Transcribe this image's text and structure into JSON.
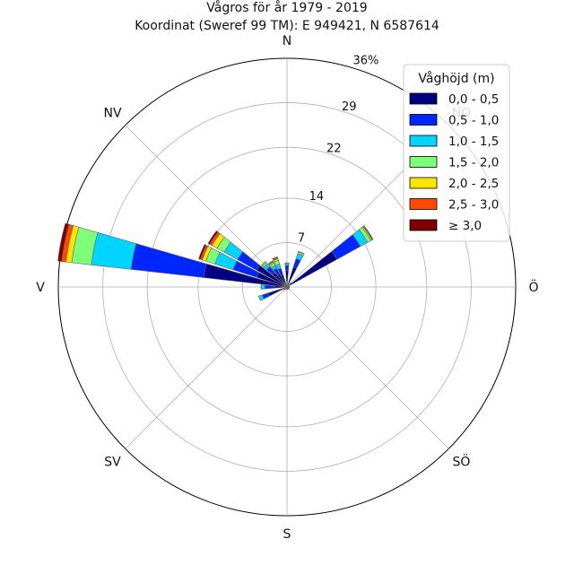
{
  "chart_data": {
    "type": "wind-rose",
    "title": "Vågros för år 1979 - 2019",
    "subtitle": "Koordinat (Sweref 99 TM): E 949421, N 6587614",
    "direction_labels": [
      "N",
      "NO",
      "Ö",
      "SÖ",
      "S",
      "SV",
      "V",
      "NV"
    ],
    "radial_ticks": [
      7,
      14,
      22,
      29,
      36
    ],
    "radial_unit": "%",
    "rmax": 36,
    "legend": {
      "title": "Våghöjd (m)",
      "position": "top-right",
      "entries": [
        {
          "label": "0,0 - 0,5",
          "color": "#000080"
        },
        {
          "label": "0,5 - 1,0",
          "color": "#0026ff"
        },
        {
          "label": "1,0 - 1,5",
          "color": "#00d4ff"
        },
        {
          "label": "1,5 - 2,0",
          "color": "#7dff7a"
        },
        {
          "label": "2,0 - 2,5",
          "color": "#ffe600"
        },
        {
          "label": "2,5 - 3,0",
          "color": "#ff4a00"
        },
        {
          "label": "≥ 3,0",
          "color": "#800000"
        }
      ]
    },
    "sectors": [
      {
        "direction": 0.0,
        "values": [
          2.6,
          0.8,
          0.3,
          0.1,
          0,
          0,
          0
        ]
      },
      {
        "direction": 22.5,
        "values": [
          3.3,
          1.4,
          0.8,
          0.3,
          0.1,
          0,
          0
        ]
      },
      {
        "direction": 45.0,
        "values": [
          0.5,
          0.2,
          0.1,
          0.1,
          0,
          0,
          0
        ]
      },
      {
        "direction": 56.25,
        "values": [
          9.0,
          4.2,
          1.3,
          0.6,
          0.2,
          0.1,
          0.1
        ]
      },
      {
        "direction": 67.5,
        "values": [
          0.3,
          0.1,
          0,
          0,
          0,
          0,
          0
        ]
      },
      {
        "direction": 90.0,
        "values": [
          0.3,
          0.1,
          0,
          0,
          0,
          0,
          0
        ]
      },
      {
        "direction": 112.5,
        "values": [
          0.3,
          0.1,
          0,
          0,
          0,
          0,
          0
        ]
      },
      {
        "direction": 135.0,
        "values": [
          0.3,
          0.1,
          0,
          0,
          0,
          0,
          0
        ]
      },
      {
        "direction": 157.5,
        "values": [
          0.3,
          0.1,
          0,
          0,
          0,
          0,
          0
        ]
      },
      {
        "direction": 180.0,
        "values": [
          0.3,
          0.1,
          0,
          0,
          0,
          0,
          0
        ]
      },
      {
        "direction": 202.5,
        "values": [
          0.3,
          0.1,
          0,
          0,
          0,
          0,
          0
        ]
      },
      {
        "direction": 225.0,
        "values": [
          0.5,
          0.2,
          0,
          0,
          0,
          0,
          0
        ]
      },
      {
        "direction": 247.5,
        "values": [
          3.1,
          1.0,
          0.6,
          0,
          0,
          0,
          0
        ]
      },
      {
        "direction": 270.0,
        "values": [
          2.0,
          1.5,
          0.5,
          0.1,
          0,
          0,
          0
        ]
      },
      {
        "direction": 281.25,
        "values": [
          13.2,
          11.5,
          6.3,
          3.1,
          0.9,
          0.7,
          0.6
        ]
      },
      {
        "direction": 292.5,
        "values": [
          5.0,
          3.9,
          3.0,
          1.5,
          0.6,
          0.3,
          0.3
        ]
      },
      {
        "direction": 303.75,
        "values": [
          5.5,
          3.4,
          2.4,
          1.3,
          0.9,
          0.4,
          0.3
        ]
      },
      {
        "direction": 315.0,
        "values": [
          3.0,
          1.2,
          0.6,
          0.3,
          0.2,
          0,
          0
        ]
      },
      {
        "direction": 326.25,
        "values": [
          2.4,
          1.0,
          0.5,
          0.4,
          0.2,
          0.1,
          0.1
        ]
      },
      {
        "direction": 337.5,
        "values": [
          2.0,
          1.1,
          0.7,
          0.6,
          0.3,
          0.2,
          0.1
        ]
      }
    ]
  }
}
